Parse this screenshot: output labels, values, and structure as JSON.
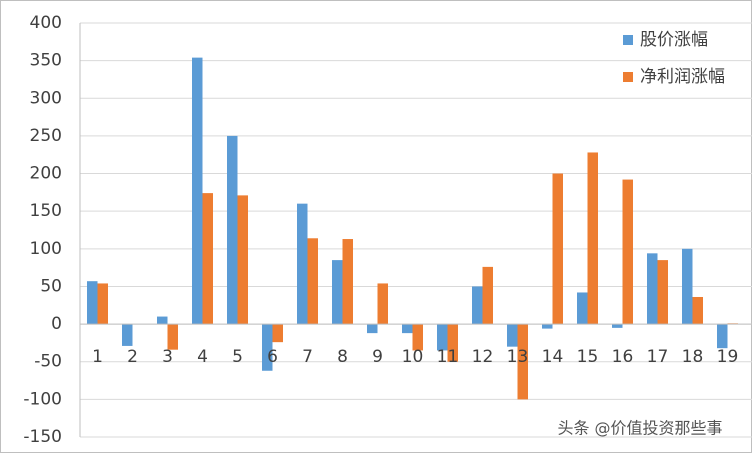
{
  "chart_data": {
    "type": "bar",
    "categories": [
      "1",
      "2",
      "3",
      "4",
      "5",
      "6",
      "7",
      "8",
      "9",
      "10",
      "11",
      "12",
      "13",
      "14",
      "15",
      "16",
      "17",
      "18",
      "19"
    ],
    "series": [
      {
        "name": "股价涨幅",
        "color": "#5b9bd5",
        "values": [
          57,
          -29,
          10,
          354,
          250,
          -62,
          160,
          85,
          -12,
          -12,
          -35,
          50,
          -30,
          -6,
          42,
          -5,
          94,
          100,
          -32
        ]
      },
      {
        "name": "净利润涨幅",
        "color": "#ed7d31",
        "values": [
          54,
          0,
          -34,
          174,
          171,
          -24,
          114,
          113,
          54,
          -35,
          -50,
          76,
          -100,
          200,
          228,
          192,
          85,
          36,
          1
        ]
      }
    ],
    "ylim": [
      -150,
      400
    ],
    "yticks": [
      -150,
      -100,
      -50,
      0,
      50,
      100,
      150,
      200,
      250,
      300,
      350,
      400
    ],
    "grid": true,
    "legend": "top-right",
    "annotation": "头条 @价值投资那些事"
  }
}
